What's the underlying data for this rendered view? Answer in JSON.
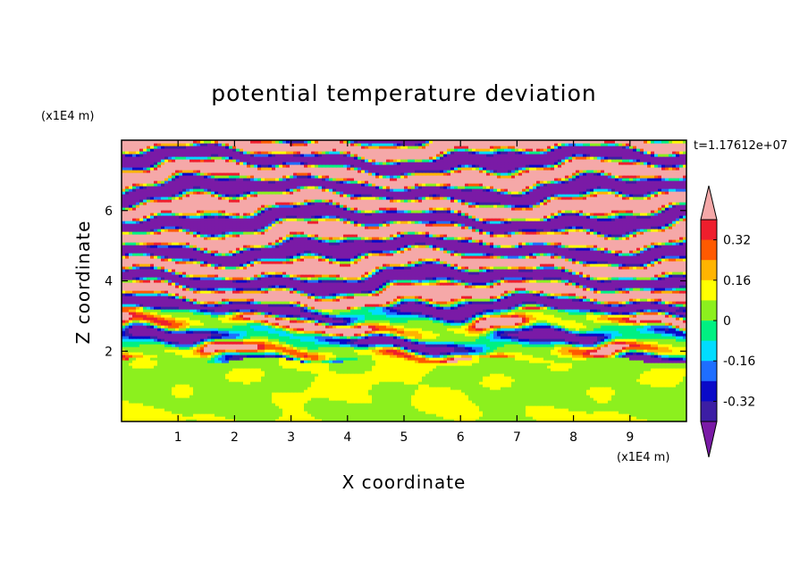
{
  "chart_data": {
    "type": "heatmap",
    "title": "potential temperature deviation",
    "xlabel": "X coordinate",
    "ylabel": "Z coordinate",
    "x_units": "(x1E4 m)",
    "y_units": "(x1E4 m)",
    "time_label": "t=1.17612e+07",
    "xlim": [
      0,
      10
    ],
    "ylim": [
      0,
      8
    ],
    "x_ticks": [
      "1",
      "2",
      "3",
      "4",
      "5",
      "6",
      "7",
      "8",
      "9"
    ],
    "y_ticks": [
      "2",
      "4",
      "6"
    ],
    "colorbar": {
      "tick_labels": [
        "0.32",
        "0.16",
        "0",
        "-0.16",
        "-0.32"
      ],
      "levels": [
        -0.4,
        -0.32,
        -0.24,
        -0.16,
        -0.08,
        0,
        0.08,
        0.16,
        0.24,
        0.32,
        0.4
      ],
      "colors": [
        "#7a1aa6",
        "#3c1ea4",
        "#0a0ac8",
        "#1e6eff",
        "#00dcff",
        "#00f082",
        "#8cf01e",
        "#ffff00",
        "#ffb400",
        "#ff5a00",
        "#ee1e2d",
        "#f5a8a8"
      ],
      "extend": "both"
    },
    "structure": {
      "lower_layer_z": [
        0,
        2
      ],
      "lower_layer_values": [
        0.0,
        0.08
      ],
      "upper_layer_z": [
        2,
        8
      ],
      "upper_layer_pattern": "horizontal stratified bands alternating between -0.4 and 0.4"
    }
  }
}
